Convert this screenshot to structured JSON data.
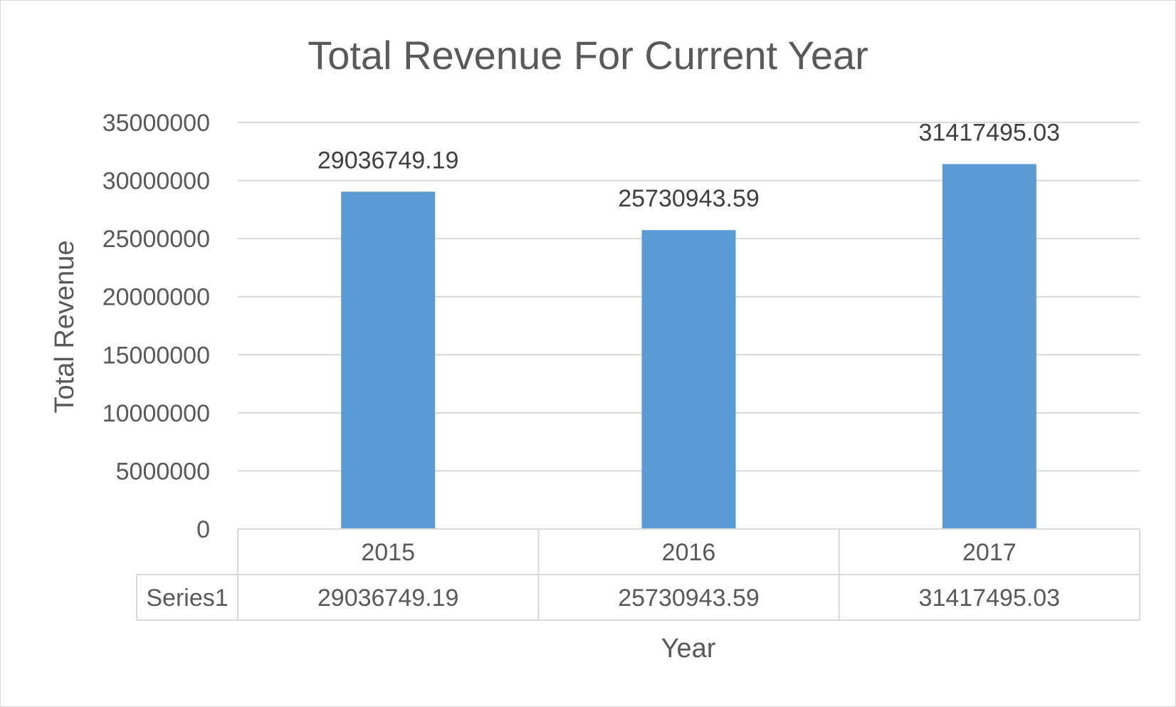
{
  "chart_data": {
    "type": "bar",
    "title": "Total Revenue For Current Year",
    "xlabel": "Year",
    "ylabel": "Total Revenue",
    "categories": [
      "2015",
      "2016",
      "2017"
    ],
    "series": [
      {
        "name": "Series1",
        "values": [
          29036749.19,
          25730943.59,
          31417495.03
        ],
        "labels": [
          "29036749.19",
          "25730943.59",
          "31417495.03"
        ],
        "color": "#5b9bd5"
      }
    ],
    "ylim": [
      0,
      35000000
    ],
    "yticks": [
      0,
      5000000,
      10000000,
      15000000,
      20000000,
      25000000,
      30000000,
      35000000
    ],
    "ytick_labels": [
      "0",
      "5000000",
      "10000000",
      "15000000",
      "20000000",
      "25000000",
      "30000000",
      "35000000"
    ],
    "grid": true,
    "data_labels": true,
    "data_table": true,
    "legend": "none",
    "colors": {
      "gridline": "#d9d9d9",
      "text": "#595959"
    }
  }
}
